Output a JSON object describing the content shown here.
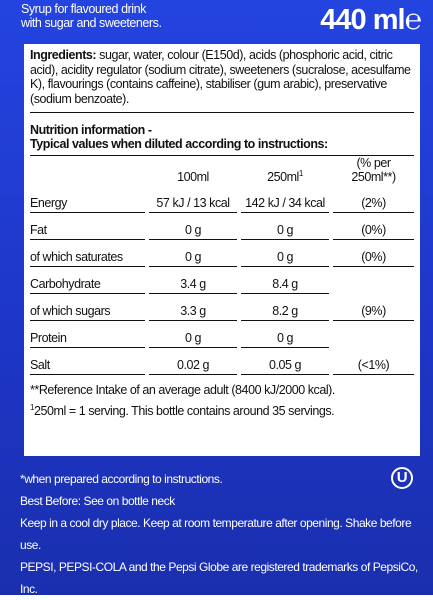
{
  "header": {
    "description_lines": [
      "Syrup for flavoured drink",
      "with sugar and sweeteners."
    ],
    "volume": "440 ml",
    "estimated_sign": "℮"
  },
  "ingredients": {
    "label": "Ingredients:",
    "text": "sugar, water, colour (E150d), acids (phosphoric acid, citric acid), acidity regulator (sodium citrate), sweeteners (sucralose, acesulfame K), flavourings (contains caffeine), stabiliser (gum arabic), preservative (sodium benzoate)."
  },
  "nutrition": {
    "title_lines": [
      "Nutrition information -",
      "Typical values when diluted according to instructions:"
    ],
    "columns": [
      {
        "text": "100ml",
        "sup": null
      },
      {
        "text": "250ml",
        "sup": "1"
      },
      {
        "text": "(% per 250ml**)",
        "sup": null
      }
    ],
    "rows": [
      [
        "Energy",
        "57 kJ / 13 kcal",
        "142 kJ / 34 kcal",
        "(2%)"
      ],
      [
        "Fat",
        "0 g",
        "0 g",
        "(0%)"
      ],
      [
        "of which saturates",
        "0 g",
        "0 g",
        "(0%)"
      ],
      [
        "Carbohydrate",
        "3.4 g",
        "8.4 g",
        null
      ],
      [
        "of which sugars",
        "3.3 g",
        "8.2 g",
        "(9%)"
      ],
      [
        "Protein",
        "0 g",
        "0 g",
        null
      ],
      [
        "Salt",
        "0.02 g",
        "0.05 g",
        "(<1%)"
      ]
    ],
    "footnotes": [
      {
        "sup": null,
        "text": "**Reference Intake of an average adult (8400 kJ/2000 kcal)."
      },
      {
        "sup": "1",
        "text": "250ml = 1 serving. This bottle contains around 35 servings."
      }
    ]
  },
  "footer": {
    "symbol": "U",
    "lines": [
      "*when prepared according to instructions.",
      "Best Before: See on bottle neck",
      "Keep in a cool dry place. Keep at room temperature after opening. Shake before use.",
      "PEPSI, PEPSI-COLA and the Pepsi Globe are registered trademarks of PepsiCo, Inc."
    ]
  }
}
